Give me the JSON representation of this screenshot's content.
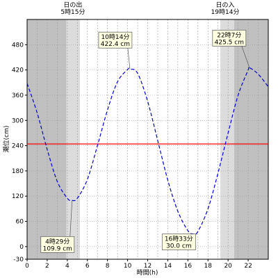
{
  "chart_data": {
    "type": "line",
    "xlabel": "時間(h)",
    "ylabel": "潮位(cm)",
    "xlim": [
      0,
      24
    ],
    "ylim": [
      -30,
      540
    ],
    "x_ticks": [
      0,
      2,
      4,
      6,
      8,
      10,
      12,
      14,
      16,
      18,
      20,
      22
    ],
    "y_ticks": [
      -30,
      0,
      60,
      120,
      180,
      240,
      300,
      360,
      420,
      480
    ],
    "grid": true,
    "reference_line": {
      "y": 244,
      "color": "#ff0000"
    },
    "sun": {
      "sunrise_label": "日の出",
      "sunrise_time": "5時15分",
      "sunrise_hour": 5.25,
      "sunset_label": "日の入",
      "sunset_time": "19時14分",
      "sunset_hour": 19.23
    },
    "shading": {
      "night_color": "#c0c0c0",
      "twilight_color": "#dcdcdc",
      "dawn_start": 3.9,
      "dusk_end": 20.6
    },
    "series": [
      {
        "color": "#0000cc",
        "style": "dashed",
        "x": [
          0,
          1,
          2,
          3,
          4,
          4.48,
          5,
          6,
          7,
          8,
          9,
          10,
          10.23,
          11,
          12,
          13,
          14,
          15,
          16,
          16.55,
          17,
          18,
          19,
          20,
          21,
          22,
          22.12,
          23,
          24
        ],
        "values": [
          388,
          318,
          231,
          155,
          115,
          109.9,
          115,
          160,
          240,
          325,
          392,
          421,
          422.4,
          412,
          345,
          252,
          158,
          84,
          38,
          30,
          36,
          90,
          175,
          270,
          360,
          420,
          425.5,
          410,
          380
        ]
      }
    ],
    "annotations": [
      {
        "time": "4時29分",
        "level": "109.9 cm",
        "x": 4.48,
        "y": 109.9
      },
      {
        "time": "10時14分",
        "level": "422.4 cm",
        "x": 10.23,
        "y": 422.4
      },
      {
        "time": "16時33分",
        "level": "30.0 cm",
        "x": 16.55,
        "y": 30.0
      },
      {
        "time": "22時7分",
        "level": "425.5 cm",
        "x": 22.12,
        "y": 425.5
      }
    ]
  }
}
